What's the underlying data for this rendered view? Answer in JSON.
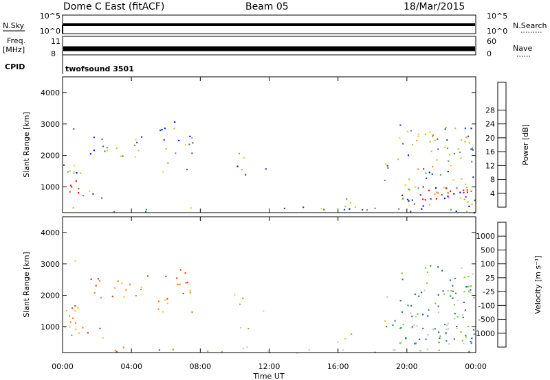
{
  "header": {
    "radar": "Dome C East (fitACF)",
    "beam": "Beam 05",
    "date": "18/Mar/2015"
  },
  "header_panels": {
    "nsky": {
      "label": "N.Sky",
      "ticks": [
        "10^5",
        "10^0"
      ]
    },
    "nsearch": {
      "label": "N.Search",
      "ticks": [
        "10^5",
        "10^0"
      ]
    },
    "freq": {
      "label_line1": "Freq.",
      "label_line2": "[MHz]",
      "ticks": [
        "11",
        "8"
      ]
    },
    "nave": {
      "label": "Nave",
      "ticks": [
        "60",
        "0"
      ]
    },
    "cpid": {
      "label": "CPID",
      "value": "twofsound 3501"
    }
  },
  "chart_data": [
    {
      "type": "heatmap",
      "name": "power",
      "ylabel": "Slant Range [km]",
      "xlabel": "",
      "ylim": [
        180,
        4500
      ],
      "yticks": [
        "1000",
        "2000",
        "3000",
        "4000"
      ],
      "colorbar": {
        "label": "Power [dB]",
        "ticks": [
          "4",
          "8",
          "12",
          "16",
          "20",
          "24",
          "28"
        ],
        "colors": [
          "#0a18e8",
          "#3448a8",
          "#3c7f62",
          "#5aa55a",
          "#a8d03c",
          "#f0d030",
          "#f09020",
          "#e85010",
          "#e01010"
        ]
      }
    },
    {
      "type": "heatmap",
      "name": "velocity",
      "ylabel": "Slant Range [km]",
      "xlabel": "Time UT",
      "ylim": [
        180,
        4500
      ],
      "yticks": [
        "1000",
        "2000",
        "3000",
        "4000"
      ],
      "xticks": [
        "00:00",
        "04:00",
        "08:00",
        "12:00",
        "16:00",
        "20:00",
        "00:00"
      ],
      "colorbar": {
        "label": "Velocity [m s⁻¹]",
        "ticks": [
          "1000",
          "500",
          "100",
          "25",
          "-25",
          "-100",
          "-500",
          "-1000"
        ],
        "colors": [
          "#1a3ab0",
          "#2a6a8a",
          "#3a8a5a",
          "#7ccc3c",
          "#c8c8c8",
          "#f0c040",
          "#f08020",
          "#e04010",
          "#e01010"
        ]
      }
    }
  ]
}
